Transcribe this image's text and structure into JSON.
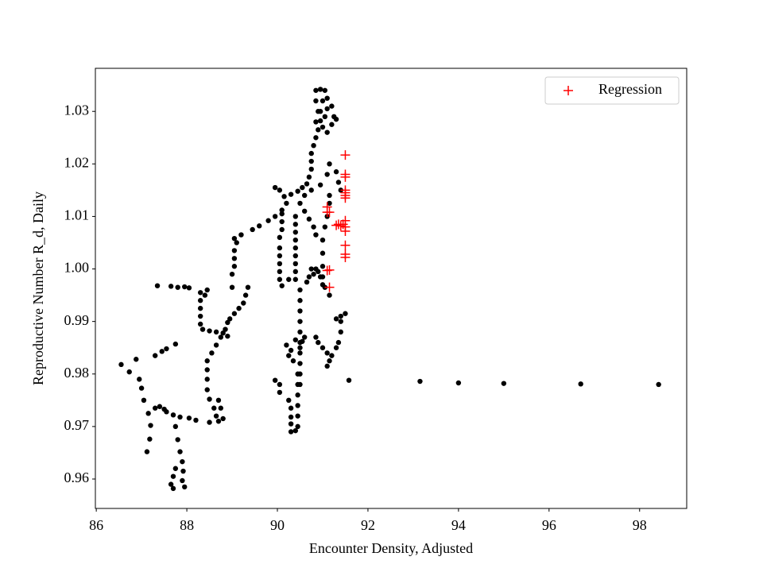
{
  "chart_data": {
    "type": "scatter",
    "x_label": "Encounter Density, Adjusted",
    "y_label": "Reproductive Number R_d, Daily",
    "xlim": [
      85.98,
      99.04
    ],
    "ylim": [
      0.9544,
      1.0382
    ],
    "xticks": [
      86,
      88,
      90,
      92,
      94,
      96,
      98
    ],
    "yticks": [
      0.96,
      0.97,
      0.98,
      0.99,
      {
        "value": 1,
        "label": "1.00"
      },
      1.01,
      1.02,
      1.03
    ],
    "grid": false,
    "legend": "upper right",
    "series": [
      {
        "color": "#000000",
        "marker": "circle",
        "x": [
          98.42,
          96.7,
          95.0,
          94.0,
          93.15,
          91.58,
          86.55,
          86.73,
          86.88,
          86.95,
          87.0,
          87.05,
          87.15,
          87.2,
          87.18,
          87.12,
          87.3,
          87.4,
          87.5,
          87.55,
          87.7,
          87.85,
          88.05,
          88.2,
          88.5,
          88.7,
          88.8,
          88.75,
          88.7,
          87.75,
          87.8,
          87.85,
          87.9,
          87.92,
          87.9,
          87.95,
          87.7,
          87.65,
          87.7,
          87.75,
          87.3,
          87.45,
          87.55,
          87.75,
          87.35,
          87.65,
          87.8,
          87.95,
          88.05,
          88.3,
          88.3,
          88.3,
          88.3,
          88.3,
          88.35,
          88.5,
          88.65,
          88.8,
          88.45,
          88.4,
          88.45,
          88.45,
          88.45,
          88.5,
          88.6,
          88.65,
          88.45,
          88.55,
          88.65,
          88.75,
          88.85,
          88.9,
          88.95,
          89.05,
          89.15,
          89.25,
          89.3,
          89.35,
          88.9,
          89.0,
          89.0,
          89.05,
          89.05,
          89.05,
          89.1,
          89.05,
          89.2,
          89.45,
          89.6,
          89.8,
          89.95,
          90.1,
          90.2,
          89.95,
          90.05,
          90.15,
          90.3,
          90.45,
          90.55,
          90.65,
          90.7,
          90.75,
          90.75,
          90.75,
          90.8,
          90.85,
          90.9,
          90.95,
          90.95,
          90.85,
          90.85,
          90.95,
          91.05,
          91.1,
          91.1,
          91.05,
          91.2,
          91.25,
          91.3,
          91.2,
          91.0,
          90.9,
          90.85,
          91.0,
          91.1,
          90.1,
          90.1,
          90.1,
          90.05,
          90.05,
          90.05,
          90.05,
          90.05,
          90.05,
          90.1,
          90.25,
          90.4,
          90.4,
          90.4,
          90.4,
          90.4,
          90.4,
          90.4,
          90.4,
          90.4,
          90.5,
          90.5,
          90.5,
          90.5,
          90.5,
          90.5,
          90.5,
          90.5,
          90.5,
          90.5,
          90.25,
          90.3,
          90.3,
          90.3,
          90.3,
          90.4,
          90.45,
          90.45,
          90.45,
          90.45,
          90.45,
          90.45,
          89.95,
          90.05,
          90.05,
          90.2,
          90.3,
          90.4,
          90.5,
          90.6,
          90.25,
          90.35,
          90.55,
          90.8,
          90.85,
          90.9,
          90.95,
          91.0,
          90.7,
          90.75,
          90.65,
          91.1,
          91.15,
          91.2,
          91.3,
          91.35,
          91.4,
          91.4,
          91.5,
          91.4,
          91.3,
          90.85,
          90.9,
          91.0,
          91.1,
          91.15,
          91.05,
          91.0,
          91.0,
          91.0,
          91.0,
          91.05,
          91.1,
          91.15,
          91.15,
          91.15,
          91.3,
          91.35,
          91.4,
          91.1,
          90.95,
          90.75,
          90.6,
          90.5,
          90.6,
          90.7,
          90.8,
          90.85
        ],
        "values": [
          0.978,
          0.9781,
          0.9782,
          0.9783,
          0.9786,
          0.9788,
          0.9818,
          0.9804,
          0.9828,
          0.979,
          0.9773,
          0.975,
          0.9725,
          0.9702,
          0.9676,
          0.9652,
          0.9735,
          0.9738,
          0.9733,
          0.9728,
          0.9722,
          0.9718,
          0.9716,
          0.9712,
          0.9708,
          0.971,
          0.9715,
          0.9735,
          0.975,
          0.97,
          0.9675,
          0.9652,
          0.9633,
          0.9615,
          0.9597,
          0.9585,
          0.9582,
          0.959,
          0.9605,
          0.962,
          0.9835,
          0.9843,
          0.9848,
          0.9857,
          0.9968,
          0.9967,
          0.9965,
          0.9966,
          0.9964,
          0.9955,
          0.994,
          0.9925,
          0.991,
          0.9895,
          0.9885,
          0.9882,
          0.988,
          0.9878,
          0.996,
          0.995,
          0.9808,
          0.979,
          0.977,
          0.9752,
          0.9735,
          0.972,
          0.9825,
          0.984,
          0.9855,
          0.987,
          0.9885,
          0.9898,
          0.9905,
          0.9915,
          0.9925,
          0.9935,
          0.995,
          0.9965,
          0.9872,
          0.9965,
          0.999,
          1.0005,
          1.002,
          1.0035,
          1.005,
          1.0058,
          1.0065,
          1.0075,
          1.0082,
          1.0092,
          1.01,
          1.0112,
          1.0125,
          1.0155,
          1.015,
          1.0138,
          1.0142,
          1.0148,
          1.0155,
          1.0162,
          1.0175,
          1.019,
          1.0205,
          1.022,
          1.0235,
          1.025,
          1.0265,
          1.0282,
          1.03,
          1.032,
          1.034,
          1.0342,
          1.034,
          1.0325,
          1.0305,
          1.029,
          1.0275,
          1.029,
          1.0285,
          1.031,
          1.032,
          1.03,
          1.028,
          1.027,
          1.026,
          1.0105,
          1.009,
          1.0075,
          1.006,
          1.004,
          1.0025,
          1.001,
          0.9995,
          0.998,
          0.9968,
          0.998,
          1.01,
          1.0085,
          1.007,
          1.0055,
          1.004,
          1.0025,
          1.001,
          0.9995,
          0.998,
          0.996,
          0.994,
          0.992,
          0.99,
          0.988,
          0.986,
          0.984,
          0.982,
          0.98,
          0.978,
          0.975,
          0.9735,
          0.9718,
          0.9705,
          0.969,
          0.9692,
          0.97,
          0.972,
          0.974,
          0.976,
          0.978,
          0.98,
          0.9788,
          0.978,
          0.9765,
          0.9855,
          0.9845,
          0.9865,
          0.985,
          0.987,
          0.9835,
          0.9825,
          0.9862,
          0.999,
          1.0,
          0.9995,
          0.9985,
          0.997,
          0.9985,
          1.0,
          0.9975,
          0.9815,
          0.9825,
          0.9835,
          0.985,
          0.986,
          0.988,
          0.99,
          0.9915,
          0.991,
          0.9905,
          0.987,
          0.986,
          0.985,
          0.984,
          0.995,
          0.9965,
          0.9985,
          1.0005,
          1.003,
          1.0055,
          1.008,
          1.01,
          1.0125,
          1.014,
          1.02,
          1.0185,
          1.0165,
          1.015,
          1.018,
          1.016,
          1.015,
          1.014,
          1.0125,
          1.011,
          1.0095,
          1.008,
          1.0065
        ]
      },
      {
        "name": "Regression",
        "color": "#ff0000",
        "marker": "plus",
        "x": [
          91.5,
          91.5,
          91.5,
          91.5,
          91.5,
          91.5,
          91.5,
          91.1,
          91.15,
          91.1,
          91.35,
          91.45,
          91.5,
          91.5,
          91.5,
          91.3,
          91.5,
          91.5,
          91.5,
          91.15,
          91.1,
          91.15,
          91.4
        ],
        "values": [
          1.0217,
          1.018,
          1.0175,
          1.015,
          1.0145,
          1.014,
          1.0135,
          1.0118,
          1.0108,
          1.0108,
          1.0085,
          1.0085,
          1.0092,
          1.008,
          1.0072,
          1.0083,
          1.0045,
          1.0028,
          1.0022,
          0.9998,
          0.9997,
          0.9965,
          1.0082
        ]
      }
    ]
  }
}
